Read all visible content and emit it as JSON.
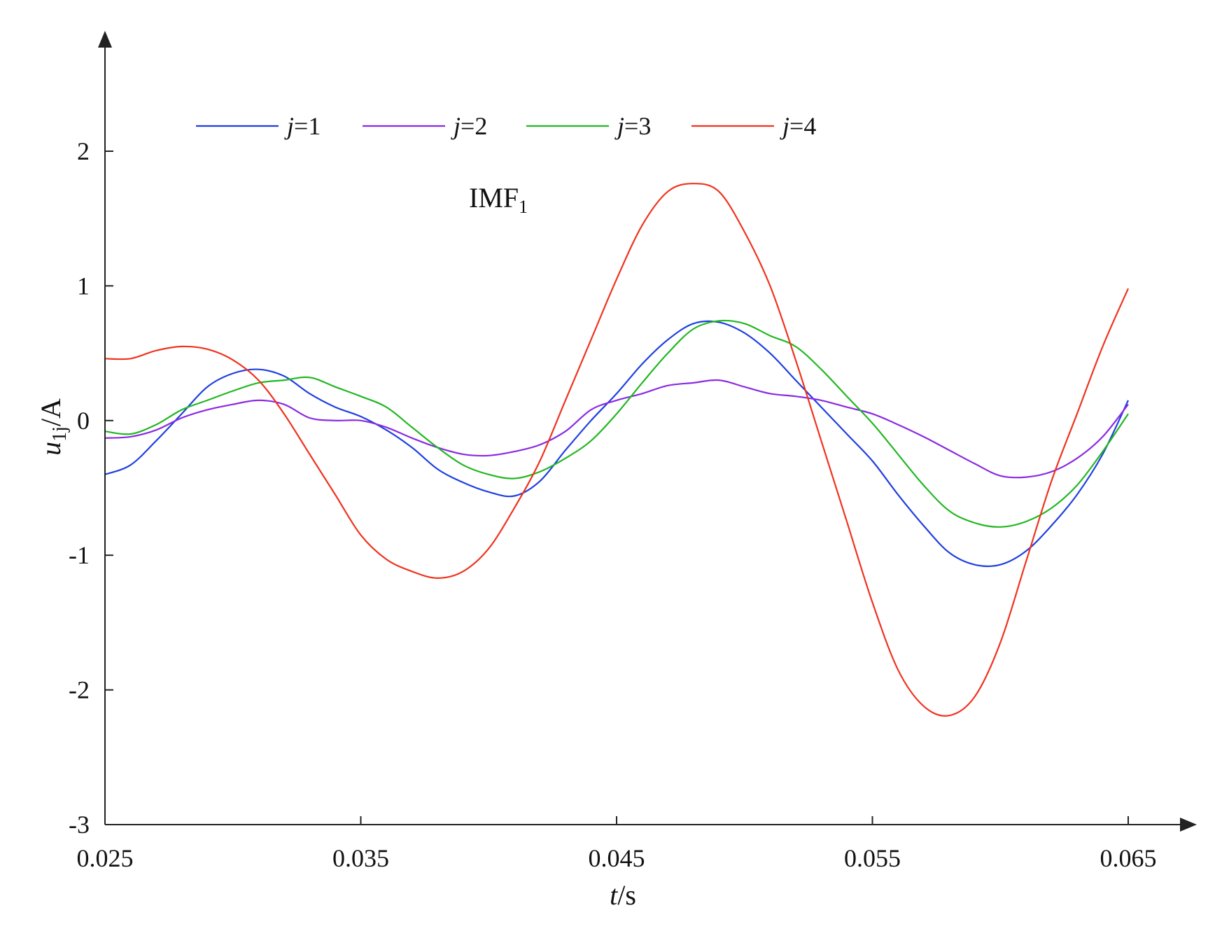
{
  "chart_data": {
    "type": "line",
    "annotation_main": "IMF",
    "annotation_sub": "1",
    "xlabel": {
      "var": "t",
      "unit": "/s"
    },
    "ylabel": {
      "var": "u",
      "sub": "1j",
      "unit": "/A"
    },
    "xlim": [
      0.025,
      0.065
    ],
    "ylim": [
      -3,
      2.7
    ],
    "xticks": [
      0.025,
      0.035,
      0.045,
      0.055,
      0.065
    ],
    "xtick_labels": [
      "0.025",
      "0.035",
      "0.045",
      "0.055",
      "0.065"
    ],
    "yticks": [
      -3,
      -2,
      -1,
      0,
      1,
      2
    ],
    "ytick_labels": [
      "-3",
      "-2",
      "-1",
      "0",
      "1",
      "2"
    ],
    "legend_position": "top",
    "series": [
      {
        "name": "j=1",
        "var": "j",
        "op": "=",
        "val": "1",
        "color": "#1f3fe0",
        "x": [
          0.025,
          0.026,
          0.027,
          0.028,
          0.029,
          0.03,
          0.031,
          0.032,
          0.033,
          0.034,
          0.035,
          0.036,
          0.037,
          0.038,
          0.039,
          0.04,
          0.041,
          0.042,
          0.043,
          0.044,
          0.045,
          0.046,
          0.047,
          0.048,
          0.049,
          0.05,
          0.051,
          0.052,
          0.053,
          0.054,
          0.055,
          0.056,
          0.057,
          0.058,
          0.059,
          0.06,
          0.061,
          0.062,
          0.063,
          0.064,
          0.065
        ],
        "y": [
          -0.4,
          -0.33,
          -0.15,
          0.05,
          0.25,
          0.35,
          0.38,
          0.33,
          0.2,
          0.1,
          0.03,
          -0.07,
          -0.2,
          -0.36,
          -0.46,
          -0.53,
          -0.56,
          -0.45,
          -0.22,
          0.0,
          0.2,
          0.42,
          0.6,
          0.72,
          0.73,
          0.65,
          0.5,
          0.3,
          0.1,
          -0.1,
          -0.3,
          -0.55,
          -0.78,
          -0.98,
          -1.07,
          -1.07,
          -0.97,
          -0.78,
          -0.55,
          -0.25,
          0.15
        ]
      },
      {
        "name": "j=2",
        "var": "j",
        "op": "=",
        "val": "2",
        "color": "#8a2be2",
        "x": [
          0.025,
          0.026,
          0.027,
          0.028,
          0.029,
          0.03,
          0.031,
          0.032,
          0.033,
          0.034,
          0.035,
          0.036,
          0.037,
          0.038,
          0.039,
          0.04,
          0.041,
          0.042,
          0.043,
          0.044,
          0.045,
          0.046,
          0.047,
          0.048,
          0.049,
          0.05,
          0.051,
          0.052,
          0.053,
          0.054,
          0.055,
          0.056,
          0.057,
          0.058,
          0.059,
          0.06,
          0.061,
          0.062,
          0.063,
          0.064,
          0.065
        ],
        "y": [
          -0.13,
          -0.12,
          -0.07,
          0.02,
          0.08,
          0.12,
          0.15,
          0.12,
          0.02,
          0.0,
          0.0,
          -0.05,
          -0.13,
          -0.2,
          -0.25,
          -0.26,
          -0.23,
          -0.18,
          -0.08,
          0.08,
          0.15,
          0.2,
          0.26,
          0.28,
          0.3,
          0.25,
          0.2,
          0.18,
          0.15,
          0.1,
          0.05,
          -0.03,
          -0.12,
          -0.22,
          -0.32,
          -0.41,
          -0.42,
          -0.38,
          -0.28,
          -0.12,
          0.12
        ]
      },
      {
        "name": "j=3",
        "var": "j",
        "op": "=",
        "val": "3",
        "color": "#22b722",
        "x": [
          0.025,
          0.026,
          0.027,
          0.028,
          0.029,
          0.03,
          0.031,
          0.032,
          0.033,
          0.034,
          0.035,
          0.036,
          0.037,
          0.038,
          0.039,
          0.04,
          0.041,
          0.042,
          0.043,
          0.044,
          0.045,
          0.046,
          0.047,
          0.048,
          0.049,
          0.05,
          0.051,
          0.052,
          0.053,
          0.054,
          0.055,
          0.056,
          0.057,
          0.058,
          0.059,
          0.06,
          0.061,
          0.062,
          0.063,
          0.064,
          0.065
        ],
        "y": [
          -0.08,
          -0.1,
          -0.03,
          0.08,
          0.15,
          0.22,
          0.28,
          0.3,
          0.32,
          0.25,
          0.18,
          0.1,
          -0.05,
          -0.2,
          -0.33,
          -0.4,
          -0.43,
          -0.38,
          -0.28,
          -0.15,
          0.05,
          0.28,
          0.5,
          0.68,
          0.74,
          0.72,
          0.63,
          0.55,
          0.38,
          0.18,
          -0.02,
          -0.25,
          -0.48,
          -0.67,
          -0.76,
          -0.79,
          -0.75,
          -0.65,
          -0.48,
          -0.23,
          0.05
        ]
      },
      {
        "name": "j=4",
        "var": "j",
        "op": "=",
        "val": "4",
        "color": "#f0321e",
        "x": [
          0.025,
          0.026,
          0.027,
          0.028,
          0.029,
          0.03,
          0.031,
          0.032,
          0.033,
          0.034,
          0.035,
          0.036,
          0.037,
          0.038,
          0.039,
          0.04,
          0.041,
          0.042,
          0.043,
          0.044,
          0.045,
          0.046,
          0.047,
          0.048,
          0.049,
          0.05,
          0.051,
          0.052,
          0.053,
          0.054,
          0.055,
          0.056,
          0.057,
          0.058,
          0.059,
          0.06,
          0.061,
          0.062,
          0.063,
          0.064,
          0.065
        ],
        "y": [
          0.46,
          0.46,
          0.52,
          0.55,
          0.53,
          0.45,
          0.3,
          0.05,
          -0.25,
          -0.55,
          -0.85,
          -1.03,
          -1.12,
          -1.17,
          -1.12,
          -0.95,
          -0.65,
          -0.3,
          0.15,
          0.6,
          1.05,
          1.45,
          1.7,
          1.76,
          1.7,
          1.4,
          1.0,
          0.45,
          -0.15,
          -0.75,
          -1.35,
          -1.85,
          -2.12,
          -2.19,
          -2.05,
          -1.65,
          -1.05,
          -0.45,
          0.05,
          0.55,
          0.98
        ]
      }
    ]
  }
}
